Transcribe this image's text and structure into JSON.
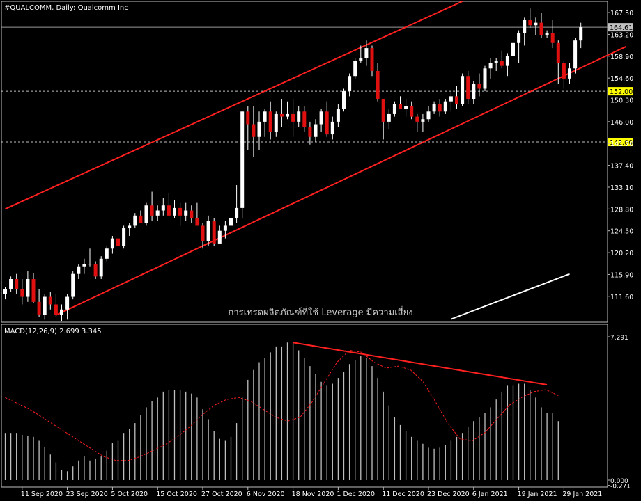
{
  "chart_data": [
    {
      "type": "candlestick",
      "title": "#QUALCOMM, Daily:  Qualcomm Inc",
      "watermark": "การเทรดผลิตภัณฑ์ที่ใช้ Leverage มีความเสี่ยง",
      "y_ticks": [
        "167.50",
        "163.20",
        "158.90",
        "154.60",
        "150.30",
        "146.00",
        "141.70",
        "137.40",
        "133.10",
        "128.80",
        "124.50",
        "120.20",
        "115.90",
        "111.60"
      ],
      "ylim": [
        106.5,
        169.7
      ],
      "x_ticks": [
        {
          "label": "11 Sep 2020",
          "bar": 3
        },
        {
          "label": "23 Sep 2020",
          "bar": 11
        },
        {
          "label": "5 Oct 2020",
          "bar": 19
        },
        {
          "label": "15 Oct 2020",
          "bar": 27
        },
        {
          "label": "27 Oct 2020",
          "bar": 35
        },
        {
          "label": "6 Nov 2020",
          "bar": 43
        },
        {
          "label": "18 Nov 2020",
          "bar": 51
        },
        {
          "label": "1 Dec 2020",
          "bar": 59
        },
        {
          "label": "11 Dec 2020",
          "bar": 67
        },
        {
          "label": "23 Dec 2020",
          "bar": 75
        },
        {
          "label": "6 Jan 2021",
          "bar": 83
        },
        {
          "label": "19 Jan 2021",
          "bar": 91
        },
        {
          "label": "29 Jan 2021",
          "bar": 99
        }
      ],
      "current_price": {
        "label": "164.61",
        "value": 164.61,
        "color": "#c0c0c0"
      },
      "levels": [
        {
          "label": "152.00",
          "value": 152.0,
          "color": "#ffff00"
        },
        {
          "label": "142.00",
          "value": 142.0,
          "color": "#ffff00"
        }
      ],
      "channel": {
        "color": "#ff2020",
        "upper": [
          {
            "bar": 0,
            "value": 128.8
          },
          {
            "bar": 81,
            "value": 169.7
          }
        ],
        "lower": [
          {
            "bar": 9,
            "value": 107.9
          },
          {
            "bar": 110,
            "value": 160.8
          }
        ]
      },
      "moving_average": {
        "color": "#ffffff",
        "points": [
          {
            "bar": 79,
            "value": 107.1
          },
          {
            "bar": 100,
            "value": 116.0
          }
        ]
      },
      "ohlc": [
        [
          112,
          113.5,
          111,
          113
        ],
        [
          113,
          115.5,
          112.5,
          115
        ],
        [
          115,
          116,
          112,
          113
        ],
        [
          113,
          115,
          110,
          111.5
        ],
        [
          111.5,
          116.5,
          110.5,
          115
        ],
        [
          115,
          116.2,
          110.3,
          110.5
        ],
        [
          110.5,
          113,
          107.5,
          108
        ],
        [
          108,
          112,
          107,
          111.5
        ],
        [
          111.5,
          112.5,
          109,
          110
        ],
        [
          110,
          112,
          107.5,
          108
        ],
        [
          108,
          110,
          106.7,
          109
        ],
        [
          109,
          112,
          107,
          111.5
        ],
        [
          111.5,
          116.5,
          111,
          116
        ],
        [
          116,
          118,
          115,
          117.5
        ],
        [
          117.5,
          119,
          116,
          118
        ],
        [
          118,
          121,
          117.5,
          118
        ],
        [
          118,
          118.5,
          115,
          115.5
        ],
        [
          115.5,
          119.5,
          115,
          119
        ],
        [
          119,
          121.5,
          118.5,
          121
        ],
        [
          121,
          123.5,
          120,
          123
        ],
        [
          123,
          125,
          121,
          121.5
        ],
        [
          121.5,
          125.5,
          121,
          125
        ],
        [
          125,
          126,
          123.5,
          125.5
        ],
        [
          125.5,
          128,
          125,
          127.5
        ],
        [
          127.5,
          128.5,
          126,
          126
        ],
        [
          126,
          130,
          125.5,
          129.5
        ],
        [
          129.5,
          132.2,
          126.5,
          127.5
        ],
        [
          127.5,
          129.5,
          126.5,
          128.5
        ],
        [
          128.5,
          131,
          127.5,
          129.5
        ],
        [
          129.5,
          132,
          127.5,
          127.5
        ],
        [
          127.5,
          130.5,
          127,
          129
        ],
        [
          129,
          130,
          125.5,
          127.5
        ],
        [
          127.5,
          130,
          126.5,
          128.5
        ],
        [
          128.5,
          129.5,
          126,
          127
        ],
        [
          127,
          130,
          125.5,
          125.5
        ],
        [
          125.5,
          126,
          121,
          122.5
        ],
        [
          122.5,
          127.5,
          121.5,
          126.5
        ],
        [
          126.5,
          127,
          121.5,
          122
        ],
        [
          122,
          125.5,
          122,
          124.5
        ],
        [
          124.5,
          126.5,
          123,
          125.5
        ],
        [
          125.5,
          129,
          125,
          127
        ],
        [
          127,
          133.5,
          126,
          129
        ],
        [
          129,
          148,
          127,
          148
        ],
        [
          148,
          149,
          140.5,
          145.5
        ],
        [
          145.5,
          149,
          139,
          143
        ],
        [
          143,
          148,
          140.5,
          146
        ],
        [
          146,
          148.5,
          143,
          148
        ],
        [
          148,
          150,
          142.5,
          144
        ],
        [
          144,
          148,
          143,
          147.5
        ],
        [
          147.5,
          150.5,
          145,
          147
        ],
        [
          147,
          150,
          146.5,
          147.5
        ],
        [
          147.5,
          150.5,
          143,
          146
        ],
        [
          146,
          149,
          145,
          148
        ],
        [
          148,
          149,
          144,
          145
        ],
        [
          145,
          146,
          141.5,
          143
        ],
        [
          143,
          146.5,
          142,
          145.5
        ],
        [
          145.5,
          148.5,
          144,
          148
        ],
        [
          148,
          150,
          143,
          143.5
        ],
        [
          143.5,
          147,
          142.5,
          146
        ],
        [
          146,
          149.5,
          145,
          148.5
        ],
        [
          148.5,
          152.5,
          148,
          152
        ],
        [
          152,
          155.5,
          151,
          155
        ],
        [
          155,
          158.5,
          154.5,
          158
        ],
        [
          158,
          161,
          157.5,
          158.5
        ],
        [
          158.5,
          162,
          157,
          160.5
        ],
        [
          160.5,
          161,
          155,
          156
        ],
        [
          156,
          157.5,
          150,
          150.5
        ],
        [
          150.5,
          150.5,
          142.5,
          146
        ],
        [
          146,
          148.5,
          144.5,
          147.5
        ],
        [
          147.5,
          150,
          147,
          149.5
        ],
        [
          149.5,
          151,
          148.5,
          148.5
        ],
        [
          148.5,
          150.5,
          147,
          149
        ],
        [
          149,
          150,
          146.5,
          147
        ],
        [
          147,
          147.5,
          144,
          146
        ],
        [
          146,
          147.5,
          144,
          146.5
        ],
        [
          146.5,
          149,
          146,
          148
        ],
        [
          148,
          150,
          147.5,
          149.5
        ],
        [
          149.5,
          150.5,
          147,
          148
        ],
        [
          148,
          150.5,
          147.5,
          150
        ],
        [
          150,
          152,
          148,
          151
        ],
        [
          151,
          153,
          148.5,
          149.5
        ],
        [
          149.5,
          155.5,
          149,
          155
        ],
        [
          155,
          156,
          149.5,
          150.5
        ],
        [
          150.5,
          154,
          149.5,
          153.5
        ],
        [
          153.5,
          155.5,
          151,
          152.5
        ],
        [
          152.5,
          157,
          152,
          156.5
        ],
        [
          156.5,
          158.5,
          154.5,
          157.5
        ],
        [
          157.5,
          158.5,
          156,
          158
        ],
        [
          158,
          160,
          156.5,
          157
        ],
        [
          157,
          159.5,
          155,
          159
        ],
        [
          159,
          162,
          157.5,
          161.5
        ],
        [
          161.5,
          164,
          157.5,
          163.5
        ],
        [
          163.5,
          166.5,
          161,
          166
        ],
        [
          166,
          168.3,
          164.5,
          165
        ],
        [
          165,
          166.5,
          163,
          165.5
        ],
        [
          165.5,
          167.5,
          162.5,
          163
        ],
        [
          163,
          164,
          162.5,
          163.5
        ],
        [
          163.5,
          166,
          160.5,
          161.5
        ],
        [
          161.5,
          162,
          153.5,
          157.5
        ],
        [
          157.5,
          158,
          152.5,
          154.5
        ],
        [
          154.5,
          157.5,
          153.5,
          156.5
        ],
        [
          156.5,
          162.5,
          155.5,
          162
        ],
        [
          162,
          165.5,
          160.5,
          164.61
        ]
      ]
    },
    {
      "type": "bar",
      "title": "MACD(12,26,9) 2.699 3.345",
      "y_ticks": [
        {
          "label": "7.291",
          "value": 7.291
        },
        {
          "label": "0.000",
          "value": 0
        },
        {
          "label": "-0.271",
          "value": -0.271
        }
      ],
      "ylim": [
        -0.271,
        7.9
      ],
      "histogram_color": "#c0c0c0",
      "signal_color": "#ff2020",
      "values": [
        2.4,
        2.4,
        2.4,
        2.3,
        2.25,
        2.2,
        2.0,
        1.7,
        1.3,
        0.9,
        0.5,
        0.45,
        0.7,
        1.0,
        1.2,
        1.0,
        1.1,
        1.2,
        1.5,
        1.9,
        2.0,
        2.4,
        2.6,
        2.9,
        3.3,
        3.7,
        4.0,
        4.2,
        4.5,
        4.6,
        4.6,
        4.6,
        4.5,
        4.4,
        4.2,
        3.6,
        3.1,
        2.5,
        2.1,
        2.0,
        2.2,
        2.9,
        4.2,
        5.1,
        5.6,
        6.0,
        6.2,
        6.5,
        6.8,
        6.8,
        7.0,
        7.0,
        6.6,
        6.2,
        5.8,
        5.4,
        5.0,
        4.8,
        4.9,
        5.2,
        5.5,
        5.9,
        6.1,
        6.3,
        6.2,
        5.8,
        5.2,
        4.5,
        3.8,
        3.2,
        2.8,
        2.5,
        2.2,
        2.0,
        1.85,
        1.65,
        1.6,
        1.65,
        1.8,
        2.0,
        2.2,
        2.4,
        2.7,
        3.0,
        3.2,
        3.4,
        3.7,
        4.1,
        4.5,
        4.8,
        4.8,
        4.9,
        4.9,
        4.6,
        4.2,
        3.7,
        3.4,
        3.4,
        3.0
      ],
      "signal": [
        4.2,
        3.9,
        3.6,
        3.2,
        2.8,
        2.4,
        2.0,
        1.6,
        1.2,
        1.0,
        1.0,
        1.2,
        1.5,
        1.8,
        2.2,
        2.7,
        3.3,
        3.8,
        4.1,
        4.2,
        4.0,
        3.6,
        3.2,
        3.0,
        3.2,
        4.0,
        5.0,
        6.0,
        6.6,
        6.5,
        6.0,
        5.7,
        5.8,
        5.6,
        5.0,
        4.0,
        2.9,
        2.1,
        2.0,
        2.4,
        3.1,
        3.8,
        4.2,
        4.5,
        4.6,
        4.3
      ],
      "trendline": {
        "color": "#ff2020",
        "points": [
          {
            "bar": 51,
            "value": 7.0
          },
          {
            "bar": 96,
            "value": 4.85
          }
        ]
      }
    }
  ]
}
